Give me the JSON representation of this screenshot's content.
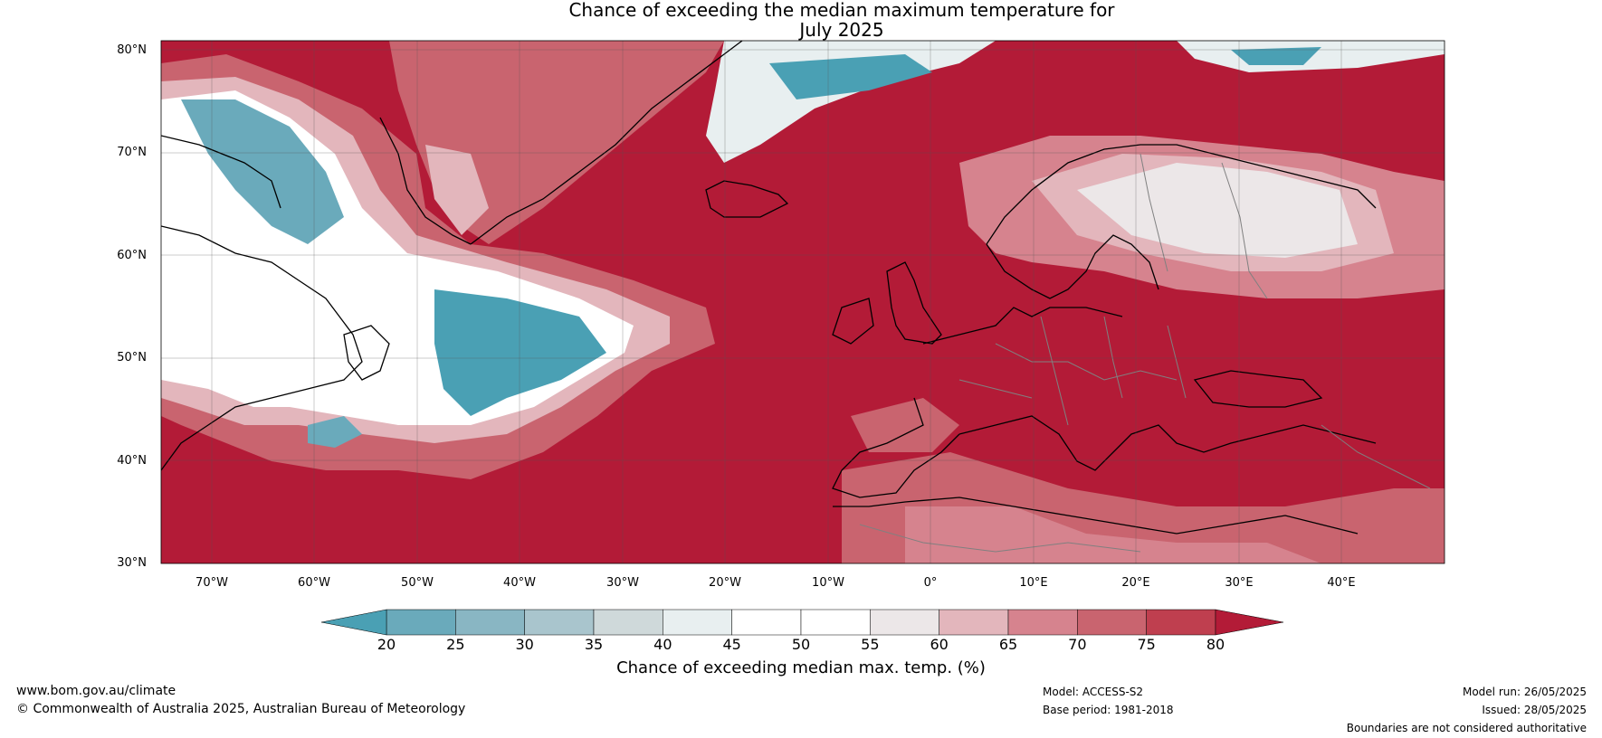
{
  "title": {
    "line1": "Chance of exceeding the median maximum temperature for",
    "line2": "July 2025"
  },
  "map": {
    "lat_labels": [
      "80°N",
      "70°N",
      "60°N",
      "50°N",
      "40°N",
      "30°N"
    ],
    "lon_labels": [
      "70°W",
      "60°W",
      "50°W",
      "40°W",
      "30°W",
      "20°W",
      "10°W",
      "0°",
      "10°E",
      "20°E",
      "30°E",
      "40°E"
    ],
    "colors": {
      "land_line": "#000000",
      "border_line": "#808080",
      "grid_line": "#555555"
    }
  },
  "colorbar": {
    "ticks": [
      "20",
      "25",
      "30",
      "35",
      "40",
      "45",
      "50",
      "55",
      "60",
      "65",
      "70",
      "75",
      "80"
    ],
    "colors": [
      "#4aa0b4",
      "#6aaabb",
      "#89b6c3",
      "#a9c5cd",
      "#cfd9da",
      "#e8eff0",
      "#ffffff",
      "#ffffff",
      "#ece7e8",
      "#e3b6bc",
      "#d6838e",
      "#c9646f",
      "#bf3f4f",
      "#b31b37"
    ],
    "label": "Chance of exceeding median max. temp. (%)"
  },
  "footer": {
    "website": "www.bom.gov.au/climate",
    "copyright": "© Commonwealth of Australia 2025, Australian Bureau of Meteorology",
    "model": "Model: ACCESS-S2",
    "base_period": "Base period: 1981-2018",
    "model_run": "Model run: 26/05/2025",
    "issued": "Issued: 28/05/2025",
    "disclaimer": "Boundaries are not considered authoritative"
  }
}
